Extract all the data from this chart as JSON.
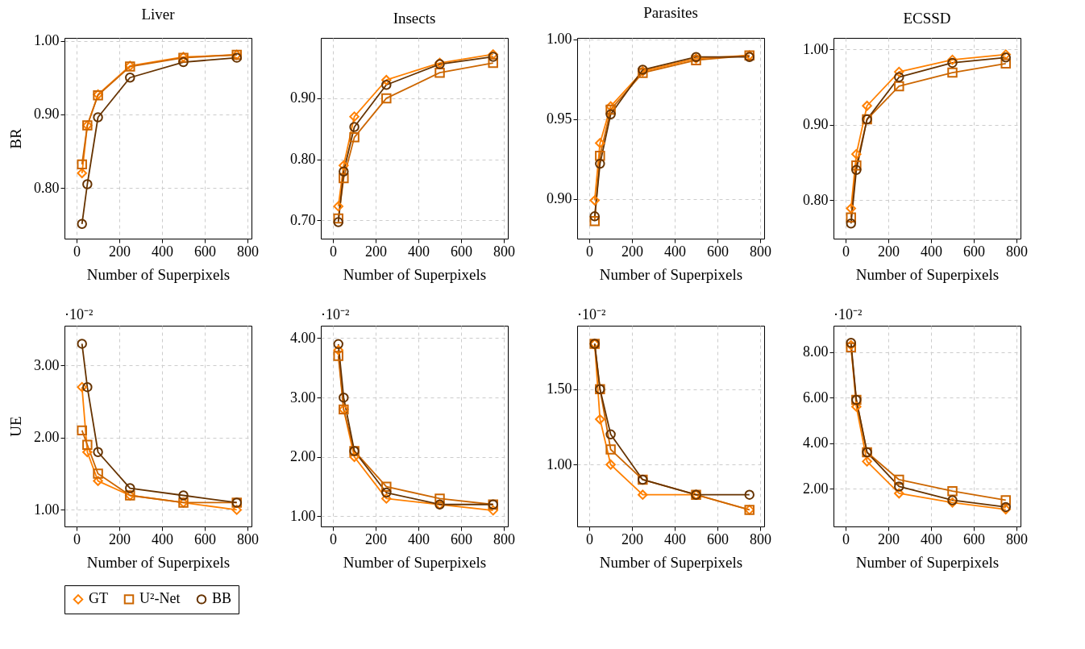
{
  "chart_data": [
    {
      "type": "line",
      "title": "Liver",
      "xlabel": "Number of Superpixels",
      "ylabel": "BR",
      "x": [
        25,
        50,
        100,
        250,
        500,
        750
      ],
      "xlim": [
        -57,
        819
      ],
      "xticks": [
        0,
        200,
        400,
        600,
        800
      ],
      "ylim": [
        0.731,
        1.004
      ],
      "yticks": [
        {
          "value": 0.8,
          "label": "0.80"
        },
        {
          "value": 0.9,
          "label": "0.90"
        },
        {
          "value": 1,
          "label": "1.00"
        }
      ],
      "grid": true,
      "legend": "bottom",
      "series": [
        {
          "name": "GT",
          "color": "#ff8000",
          "marker": "diamond",
          "values": [
            0.82,
            0.885,
            0.927,
            0.966,
            0.978,
            0.981
          ]
        },
        {
          "name": "U²-Net",
          "color": "#cc6600",
          "marker": "square",
          "values": [
            0.832,
            0.885,
            0.926,
            0.965,
            0.977,
            0.981
          ]
        },
        {
          "name": "BB",
          "color": "#663300",
          "marker": "circle",
          "values": [
            0.751,
            0.805,
            0.896,
            0.95,
            0.971,
            0.977
          ]
        }
      ]
    },
    {
      "type": "line",
      "title": "Insects",
      "xlabel": "Number of Superpixels",
      "x": [
        25,
        50,
        100,
        250,
        500,
        750
      ],
      "xlim": [
        -57,
        819
      ],
      "xticks": [
        0,
        200,
        400,
        600,
        800
      ],
      "ylim": [
        0.67,
        0.999
      ],
      "yticks": [
        {
          "value": 0.7,
          "label": "0.70"
        },
        {
          "value": 0.8,
          "label": "0.80"
        },
        {
          "value": 0.9,
          "label": "0.90"
        }
      ],
      "grid": true,
      "legend": "bottom",
      "series": [
        {
          "name": "GT",
          "color": "#ff8000",
          "marker": "diamond",
          "values": [
            0.723,
            0.79,
            0.87,
            0.93,
            0.958,
            0.972
          ]
        },
        {
          "name": "U²-Net",
          "color": "#cc6600",
          "marker": "square",
          "values": [
            0.703,
            0.769,
            0.836,
            0.9,
            0.942,
            0.958
          ]
        },
        {
          "name": "BB",
          "color": "#663300",
          "marker": "circle",
          "values": [
            0.697,
            0.78,
            0.853,
            0.922,
            0.956,
            0.968
          ]
        }
      ]
    },
    {
      "type": "line",
      "title": "Parasites",
      "xlabel": "Number of Superpixels",
      "x": [
        25,
        50,
        100,
        250,
        500,
        750
      ],
      "xlim": [
        -57,
        819
      ],
      "xticks": [
        0,
        200,
        400,
        600,
        800
      ],
      "ylim": [
        0.875,
        1.001
      ],
      "yticks": [
        {
          "value": 0.9,
          "label": "0.90"
        },
        {
          "value": 0.95,
          "label": "0.95"
        },
        {
          "value": 1,
          "label": "1.00"
        }
      ],
      "grid": true,
      "legend": "bottom",
      "series": [
        {
          "name": "GT",
          "color": "#ff8000",
          "marker": "diamond",
          "values": [
            0.899,
            0.935,
            0.958,
            0.98,
            0.988,
            0.99
          ]
        },
        {
          "name": "U²-Net",
          "color": "#cc6600",
          "marker": "square",
          "values": [
            0.886,
            0.927,
            0.956,
            0.979,
            0.987,
            0.99
          ]
        },
        {
          "name": "BB",
          "color": "#663300",
          "marker": "circle",
          "values": [
            0.889,
            0.922,
            0.953,
            0.981,
            0.989,
            0.989
          ]
        }
      ]
    },
    {
      "type": "line",
      "title": "ECSSD",
      "xlabel": "Number of Superpixels",
      "x": [
        25,
        50,
        100,
        250,
        500,
        750
      ],
      "xlim": [
        -57,
        819
      ],
      "xticks": [
        0,
        200,
        400,
        600,
        800
      ],
      "ylim": [
        0.749,
        1.015
      ],
      "yticks": [
        {
          "value": 0.8,
          "label": "0.80"
        },
        {
          "value": 0.9,
          "label": "0.90"
        },
        {
          "value": 1,
          "label": "1.00"
        }
      ],
      "grid": true,
      "legend": "bottom",
      "series": [
        {
          "name": "GT",
          "color": "#ff8000",
          "marker": "diamond",
          "values": [
            0.789,
            0.861,
            0.925,
            0.97,
            0.986,
            0.993
          ]
        },
        {
          "name": "U²-Net",
          "color": "#cc6600",
          "marker": "square",
          "values": [
            0.777,
            0.846,
            0.907,
            0.951,
            0.969,
            0.981
          ]
        },
        {
          "name": "BB",
          "color": "#663300",
          "marker": "circle",
          "values": [
            0.769,
            0.84,
            0.907,
            0.963,
            0.982,
            0.989
          ]
        }
      ]
    },
    {
      "type": "line",
      "xlabel": "Number of Superpixels",
      "ylabel": "UE",
      "annotations": [
        "·10⁻²"
      ],
      "x": [
        25,
        50,
        100,
        250,
        500,
        750
      ],
      "xlim": [
        -57,
        819
      ],
      "xticks": [
        0,
        200,
        400,
        600,
        800
      ],
      "ylim": [
        0.77,
        3.55
      ],
      "yticks": [
        {
          "value": 1,
          "label": "1.00"
        },
        {
          "value": 2,
          "label": "2.00"
        },
        {
          "value": 3,
          "label": "3.00"
        }
      ],
      "grid": true,
      "legend": "bottom",
      "series": [
        {
          "name": "GT",
          "color": "#ff8000",
          "marker": "diamond",
          "values": [
            2.7,
            1.8,
            1.4,
            1.2,
            1.1,
            1.0
          ]
        },
        {
          "name": "U²-Net",
          "color": "#cc6600",
          "marker": "square",
          "values": [
            2.1,
            1.9,
            1.5,
            1.2,
            1.1,
            1.1
          ]
        },
        {
          "name": "BB",
          "color": "#663300",
          "marker": "circle",
          "values": [
            3.3,
            2.7,
            1.8,
            1.3,
            1.2,
            1.1
          ]
        }
      ]
    },
    {
      "type": "line",
      "xlabel": "Number of Superpixels",
      "annotations": [
        "·10⁻²"
      ],
      "x": [
        25,
        50,
        100,
        250,
        500,
        750
      ],
      "xlim": [
        -57,
        819
      ],
      "xticks": [
        0,
        200,
        400,
        600,
        800
      ],
      "ylim": [
        0.83,
        4.21
      ],
      "yticks": [
        {
          "value": 1,
          "label": "1.00"
        },
        {
          "value": 2,
          "label": "2.00"
        },
        {
          "value": 3,
          "label": "3.00"
        },
        {
          "value": 4,
          "label": "4.00"
        }
      ],
      "grid": true,
      "legend": "bottom",
      "series": [
        {
          "name": "GT",
          "color": "#ff8000",
          "marker": "diamond",
          "values": [
            3.8,
            2.8,
            2.0,
            1.3,
            1.2,
            1.1
          ]
        },
        {
          "name": "U²-Net",
          "color": "#cc6600",
          "marker": "square",
          "values": [
            3.7,
            2.8,
            2.1,
            1.5,
            1.3,
            1.2
          ]
        },
        {
          "name": "BB",
          "color": "#663300",
          "marker": "circle",
          "values": [
            3.9,
            3.0,
            2.1,
            1.4,
            1.2,
            1.2
          ]
        }
      ]
    },
    {
      "type": "line",
      "xlabel": "Number of Superpixels",
      "annotations": [
        "·10⁻²"
      ],
      "x": [
        25,
        50,
        100,
        250,
        500,
        750
      ],
      "xlim": [
        -57,
        819
      ],
      "xticks": [
        0,
        200,
        400,
        600,
        800
      ],
      "ylim": [
        0.59,
        1.92
      ],
      "yticks": [
        {
          "value": 1,
          "label": "1.00"
        },
        {
          "value": 1.5,
          "label": "1.50"
        }
      ],
      "grid": true,
      "legend": "bottom",
      "series": [
        {
          "name": "GT",
          "color": "#ff8000",
          "marker": "diamond",
          "values": [
            1.8,
            1.3,
            1.0,
            0.8,
            0.8,
            0.7
          ]
        },
        {
          "name": "U²-Net",
          "color": "#cc6600",
          "marker": "square",
          "values": [
            1.8,
            1.5,
            1.1,
            0.9,
            0.8,
            0.7
          ]
        },
        {
          "name": "BB",
          "color": "#663300",
          "marker": "circle",
          "values": [
            1.8,
            1.5,
            1.2,
            0.9,
            0.8,
            0.8
          ]
        }
      ]
    },
    {
      "type": "line",
      "xlabel": "Number of Superpixels",
      "annotations": [
        "·10⁻²"
      ],
      "x": [
        25,
        50,
        100,
        250,
        500,
        750
      ],
      "xlim": [
        -57,
        819
      ],
      "xticks": [
        0,
        200,
        400,
        600,
        800
      ],
      "ylim": [
        0.35,
        9.15
      ],
      "yticks": [
        {
          "value": 2,
          "label": "2.00"
        },
        {
          "value": 4,
          "label": "4.00"
        },
        {
          "value": 6,
          "label": "6.00"
        },
        {
          "value": 8,
          "label": "8.00"
        }
      ],
      "grid": true,
      "legend": "bottom",
      "series": [
        {
          "name": "GT",
          "color": "#ff8000",
          "marker": "diamond",
          "values": [
            8.3,
            5.6,
            3.2,
            1.8,
            1.4,
            1.1
          ]
        },
        {
          "name": "U²-Net",
          "color": "#cc6600",
          "marker": "square",
          "values": [
            8.2,
            5.9,
            3.6,
            2.4,
            1.9,
            1.5
          ]
        },
        {
          "name": "BB",
          "color": "#663300",
          "marker": "circle",
          "values": [
            8.4,
            5.9,
            3.6,
            2.1,
            1.5,
            1.2
          ]
        }
      ]
    }
  ]
}
